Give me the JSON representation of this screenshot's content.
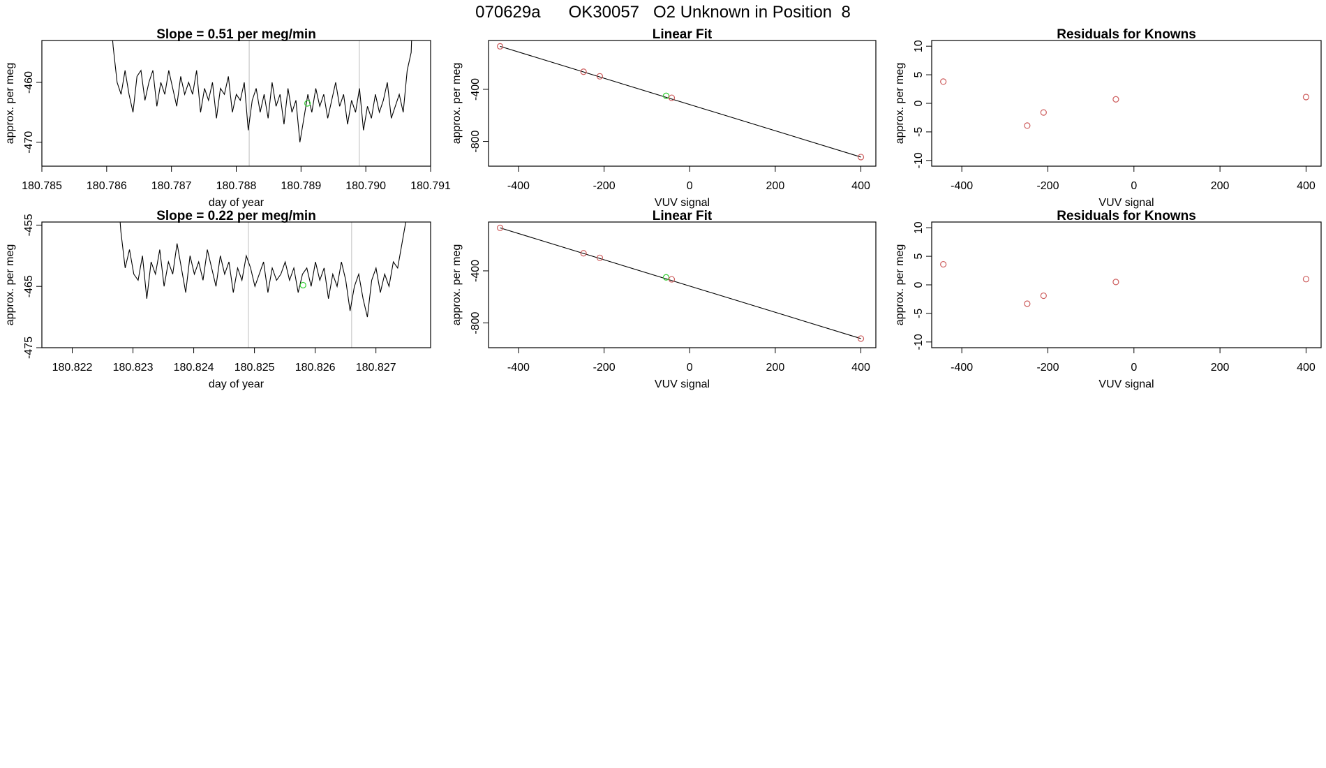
{
  "figure": {
    "title": "070629a      OK30057   O2 Unknown in Position  8"
  },
  "colors": {
    "trace": "#000000",
    "known_point": "#cd5c5c",
    "unknown_point": "#32cd32",
    "marker_line": "#bebebe"
  },
  "chart_data": [
    {
      "type": "line",
      "title": "Slope =  0.51  per meg/min",
      "xlabel": "day of year",
      "ylabel": "approx. per meg",
      "xlim": [
        180.785,
        180.791
      ],
      "ylim": [
        -474,
        -453
      ],
      "xticks": [
        "180.785",
        "180.786",
        "180.787",
        "180.788",
        "180.789",
        "180.790",
        "180.791"
      ],
      "yticks": [
        "-460",
        "-470"
      ],
      "vertical_markers": [
        180.7882,
        180.7899
      ],
      "x_start": 180.7861,
      "x_end": 180.7907,
      "y_values": [
        -454,
        -460,
        -462,
        -458,
        -462,
        -465,
        -459,
        -458,
        -463,
        -460,
        -458,
        -464,
        -460,
        -462,
        -458,
        -461,
        -464,
        -459,
        -462,
        -460,
        -462,
        -458,
        -465,
        -461,
        -463,
        -460,
        -466,
        -461,
        -462,
        -459,
        -465,
        -462,
        -463,
        -460,
        -468,
        -463,
        -461,
        -465,
        -462,
        -466,
        -460,
        -464,
        -462,
        -467,
        -461,
        -465,
        -463,
        -470,
        -466,
        -462,
        -465,
        -461,
        -464,
        -462,
        -466,
        -463,
        -460,
        -464,
        -462,
        -467,
        -463,
        -465,
        -461,
        -468,
        -464,
        -466,
        -462,
        -465,
        -463,
        -460,
        -466,
        -464,
        -462,
        -465,
        -458,
        -455
      ],
      "unknown_point": {
        "x": 180.7891,
        "y": -463.5
      }
    },
    {
      "type": "scatter",
      "title": "Linear Fit",
      "xlabel": "VUV signal",
      "ylabel": "approx. per meg",
      "xlim": [
        -470,
        435
      ],
      "ylim": [
        -990,
        -25
      ],
      "xticks": [
        "-400",
        "-200",
        "0",
        "200",
        "400"
      ],
      "yticks": [
        "-400",
        "-800"
      ],
      "fit_line": {
        "x": [
          -443,
          400
        ],
        "y": [
          -70,
          -920
        ]
      },
      "knowns": {
        "x": [
          -443,
          -248,
          -210,
          -42,
          400
        ],
        "y": [
          -70,
          -265,
          -300,
          -465,
          -920
        ]
      },
      "unknown": {
        "x": -55,
        "y": -450
      }
    },
    {
      "type": "scatter",
      "title": "Residuals for Knowns",
      "xlabel": "VUV signal",
      "ylabel": "approx. per meg",
      "xlim": [
        -470,
        435
      ],
      "ylim": [
        -11,
        11
      ],
      "xticks": [
        "-400",
        "-200",
        "0",
        "200",
        "400"
      ],
      "yticks": [
        "10",
        "5",
        "0",
        "-5",
        "-10"
      ],
      "residuals": {
        "x": [
          -443,
          -248,
          -210,
          -42,
          400
        ],
        "y": [
          3.8,
          -3.9,
          -1.6,
          0.7,
          1.1
        ]
      }
    },
    {
      "type": "line",
      "title": "Slope =  0.22  per meg/min",
      "xlabel": "day of year",
      "ylabel": "approx. per meg",
      "xlim": [
        180.8215,
        180.8279
      ],
      "ylim": [
        -475,
        -454.5
      ],
      "xticks": [
        "180.822",
        "180.823",
        "180.824",
        "180.825",
        "180.826",
        "180.827"
      ],
      "yticks": [
        "-455",
        "-465",
        "-475"
      ],
      "vertical_markers": [
        180.8249,
        180.8266
      ],
      "x_start": 180.8228,
      "x_end": 180.8275,
      "y_values": [
        -456,
        -462,
        -459,
        -463,
        -464,
        -460,
        -467,
        -461,
        -463,
        -459,
        -465,
        -461,
        -463,
        -458,
        -462,
        -466,
        -460,
        -463,
        -461,
        -464,
        -459,
        -462,
        -465,
        -460,
        -463,
        -461,
        -466,
        -462,
        -464,
        -460,
        -462,
        -465,
        -463,
        -461,
        -466,
        -462,
        -464,
        -463,
        -461,
        -464,
        -462,
        -466,
        -463,
        -462,
        -465,
        -461,
        -464,
        -462,
        -467,
        -463,
        -465,
        -461,
        -464,
        -469,
        -465,
        -463,
        -467,
        -470,
        -464,
        -462,
        -466,
        -463,
        -465,
        -461,
        -462,
        -458,
        -454
      ],
      "unknown_point": {
        "x": 180.8258,
        "y": -464.8
      }
    },
    {
      "type": "scatter",
      "title": "Linear Fit",
      "xlabel": "VUV signal",
      "ylabel": "approx. per meg",
      "xlim": [
        -470,
        435
      ],
      "ylim": [
        -990,
        -25
      ],
      "xticks": [
        "-400",
        "-200",
        "0",
        "200",
        "400"
      ],
      "yticks": [
        "-400",
        "-800"
      ],
      "fit_line": {
        "x": [
          -443,
          400
        ],
        "y": [
          -70,
          -920
        ]
      },
      "knowns": {
        "x": [
          -443,
          -248,
          -210,
          -42,
          400
        ],
        "y": [
          -70,
          -265,
          -300,
          -465,
          -920
        ]
      },
      "unknown": {
        "x": -55,
        "y": -450
      }
    },
    {
      "type": "scatter",
      "title": "Residuals for Knowns",
      "xlabel": "VUV signal",
      "ylabel": "approx. per meg",
      "xlim": [
        -470,
        435
      ],
      "ylim": [
        -11,
        11
      ],
      "xticks": [
        "-400",
        "-200",
        "0",
        "200",
        "400"
      ],
      "yticks": [
        "10",
        "5",
        "0",
        "-5",
        "-10"
      ],
      "residuals": {
        "x": [
          -443,
          -248,
          -210,
          -42,
          400
        ],
        "y": [
          3.6,
          -3.3,
          -1.9,
          0.5,
          1.0
        ]
      }
    }
  ]
}
